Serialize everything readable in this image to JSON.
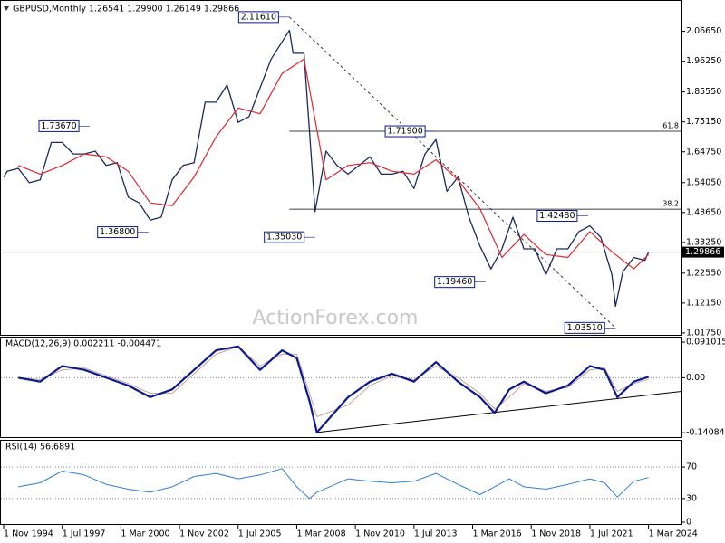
{
  "chart_data": [
    {
      "type": "price",
      "title": "GBPUSD,Monthly  1.26541 1.29900 1.26149 1.29866",
      "xlim": [
        "1994-11-01",
        "2025-09-01"
      ],
      "ylim": [
        1.011,
        2.166
      ],
      "yticks": [
        {
          "value": 2.0665,
          "label": "2.06650"
        },
        {
          "value": 1.9625,
          "label": "1.96250"
        },
        {
          "value": 1.8555,
          "label": "1.85550"
        },
        {
          "value": 1.7515,
          "label": "1.75150"
        },
        {
          "value": 1.6475,
          "label": "1.64750"
        },
        {
          "value": 1.5405,
          "label": "1.54050"
        },
        {
          "value": 1.4365,
          "label": "1.43650"
        },
        {
          "value": 1.3325,
          "label": "1.33250"
        },
        {
          "value": 1.2255,
          "label": "1.22550"
        },
        {
          "value": 1.1215,
          "label": "1.12150"
        },
        {
          "value": 1.0175,
          "label": "1.01750"
        }
      ],
      "current_price": 1.29866,
      "watermark": "ActionForex.com",
      "series": [
        {
          "color": "#1b2a5c",
          "x": [
            "1994-11-01",
            "1995-01-01",
            "1995-07-01",
            "1996-01-01",
            "1996-07-01",
            "1997-01-01",
            "1997-07-01",
            "1998-01-01",
            "1998-07-01",
            "1999-01-01",
            "1999-07-01",
            "2000-01-01",
            "2000-07-01",
            "2001-01-01",
            "2001-07-01",
            "2002-01-01",
            "2002-07-01",
            "2003-01-01",
            "2003-07-01",
            "2004-01-01",
            "2004-07-01",
            "2005-01-01",
            "2005-07-01",
            "2006-01-01",
            "2006-07-01",
            "2007-01-01",
            "2007-07-01",
            "2007-11-01",
            "2008-01-01",
            "2008-07-01",
            "2009-01-01",
            "2009-07-01",
            "2010-01-01",
            "2010-07-01",
            "2011-01-01",
            "2011-07-01",
            "2012-01-01",
            "2012-07-01",
            "2013-01-01",
            "2013-07-01",
            "2014-01-01",
            "2014-07-01",
            "2015-01-01",
            "2015-07-01",
            "2016-01-01",
            "2016-07-01",
            "2017-01-01",
            "2017-07-01",
            "2018-01-01",
            "2018-07-01",
            "2019-01-01",
            "2019-07-01",
            "2020-01-01",
            "2020-07-01",
            "2021-01-01",
            "2021-07-01",
            "2022-01-01",
            "2022-07-01",
            "2022-09-01",
            "2023-01-01",
            "2023-07-01",
            "2024-01-01",
            "2024-03-01"
          ],
          "values": [
            1.56,
            1.58,
            1.59,
            1.54,
            1.55,
            1.68,
            1.68,
            1.64,
            1.64,
            1.65,
            1.6,
            1.61,
            1.49,
            1.47,
            1.41,
            1.42,
            1.55,
            1.6,
            1.61,
            1.82,
            1.82,
            1.88,
            1.75,
            1.77,
            1.87,
            1.97,
            2.03,
            2.07,
            1.99,
            1.99,
            1.44,
            1.65,
            1.6,
            1.57,
            1.6,
            1.63,
            1.57,
            1.57,
            1.58,
            1.52,
            1.64,
            1.69,
            1.51,
            1.56,
            1.42,
            1.32,
            1.24,
            1.31,
            1.42,
            1.31,
            1.31,
            1.22,
            1.31,
            1.31,
            1.37,
            1.39,
            1.35,
            1.22,
            1.11,
            1.23,
            1.28,
            1.27,
            1.29866
          ]
        },
        {
          "color": "#e0262b",
          "x": [
            "1995-07-01",
            "1996-07-01",
            "1997-07-01",
            "1998-07-01",
            "1999-07-01",
            "2000-07-01",
            "2001-07-01",
            "2002-07-01",
            "2003-07-01",
            "2004-07-01",
            "2005-07-01",
            "2006-07-01",
            "2007-07-01",
            "2008-07-01",
            "2009-07-01",
            "2010-07-01",
            "2011-07-01",
            "2012-07-01",
            "2013-07-01",
            "2014-07-01",
            "2015-07-01",
            "2016-07-01",
            "2017-07-01",
            "2018-07-01",
            "2019-07-01",
            "2020-07-01",
            "2021-07-01",
            "2022-07-01",
            "2023-07-01",
            "2024-03-01"
          ],
          "values": [
            1.6,
            1.57,
            1.6,
            1.64,
            1.63,
            1.58,
            1.47,
            1.46,
            1.56,
            1.7,
            1.8,
            1.78,
            1.92,
            1.97,
            1.55,
            1.6,
            1.61,
            1.58,
            1.57,
            1.62,
            1.55,
            1.45,
            1.28,
            1.36,
            1.29,
            1.28,
            1.37,
            1.3,
            1.24,
            1.29
          ]
        }
      ],
      "annotations": {
        "x": [
          "2007-11-01",
          "1998-10-01",
          "2001-06-01",
          "2009-01-01",
          "2014-07-01",
          "2016-10-01",
          "2021-06-01",
          "2022-09-01"
        ],
        "values": [
          2.1161,
          1.7367,
          1.368,
          1.3503,
          1.719,
          1.1946,
          1.4248,
          1.0351
        ],
        "value_labels": [
          "2.11610",
          "1.73670",
          "1.36800",
          "1.35030",
          "1.71900",
          "1.19460",
          "1.42480",
          "1.03510"
        ]
      },
      "fib_start": "2007-11-01",
      "fib_levels": [
        {
          "value": 1.719,
          "label": "61.8"
        },
        {
          "value": 1.448,
          "label": "38.2"
        }
      ]
    },
    {
      "type": "macd",
      "title": "MACD(12,26,9) 0.002211 -0.004471",
      "xlim": [
        "1994-11-01",
        "2025-09-01"
      ],
      "ylim": [
        -0.152,
        0.105
      ],
      "yticks": [
        0.091015,
        {
          "value": 0,
          "label": "0.00"
        },
        -0.140843
      ],
      "zero_line": true,
      "x": [
        "1995-07-01",
        "1996-07-01",
        "1997-07-01",
        "1998-07-01",
        "1999-07-01",
        "2000-07-01",
        "2001-07-01",
        "2002-07-01",
        "2003-07-01",
        "2004-07-01",
        "2005-07-01",
        "2006-07-01",
        "2007-07-01",
        "2008-03-01",
        "2008-10-01",
        "2009-02-01",
        "2010-07-01",
        "2011-07-01",
        "2012-07-01",
        "2013-07-01",
        "2014-07-01",
        "2015-07-01",
        "2016-07-01",
        "2017-03-01",
        "2017-11-01",
        "2018-07-01",
        "2019-07-01",
        "2020-07-01",
        "2021-07-01",
        "2022-03-01",
        "2022-10-01",
        "2023-07-01",
        "2024-03-01"
      ],
      "series": [
        {
          "color": "#0a1a8c",
          "values": [
            0.0,
            -0.01,
            0.03,
            0.02,
            0.0,
            -0.02,
            -0.05,
            -0.03,
            0.02,
            0.07,
            0.08,
            0.02,
            0.07,
            0.05,
            -0.06,
            -0.14,
            -0.05,
            -0.01,
            0.01,
            -0.01,
            0.04,
            -0.01,
            -0.05,
            -0.09,
            -0.03,
            -0.01,
            -0.04,
            -0.02,
            0.03,
            0.02,
            -0.05,
            -0.01,
            0.002211
          ]
        },
        {
          "color": "#c8a0a0",
          "values": [
            0.0,
            -0.005,
            0.02,
            0.025,
            0.005,
            -0.015,
            -0.04,
            -0.04,
            0.01,
            0.06,
            0.08,
            0.03,
            0.06,
            0.06,
            -0.04,
            -0.1,
            -0.07,
            -0.02,
            0.005,
            -0.005,
            0.03,
            0.0,
            -0.04,
            -0.08,
            -0.05,
            -0.015,
            -0.035,
            -0.025,
            0.02,
            0.025,
            -0.035,
            -0.015,
            -0.004471
          ]
        }
      ],
      "trendline": {
        "x": [
          "2009-02-01",
          "2025-09-01"
        ],
        "values": [
          -0.14,
          -0.035
        ]
      }
    },
    {
      "type": "rsi",
      "title": "RSI(14) 56.6891",
      "xlim": [
        "1994-11-01",
        "2025-09-01"
      ],
      "ylim": [
        0,
        100
      ],
      "yticks": [
        70,
        30,
        0
      ],
      "grid": true,
      "x": [
        "1995-07-01",
        "1996-07-01",
        "1997-07-01",
        "1998-07-01",
        "1999-07-01",
        "2000-07-01",
        "2001-07-01",
        "2002-07-01",
        "2003-07-01",
        "2004-07-01",
        "2005-07-01",
        "2006-07-01",
        "2007-07-01",
        "2008-03-01",
        "2008-10-01",
        "2009-02-01",
        "2010-07-01",
        "2011-07-01",
        "2012-07-01",
        "2013-07-01",
        "2014-07-01",
        "2015-07-01",
        "2016-07-01",
        "2017-03-01",
        "2017-11-01",
        "2018-07-01",
        "2019-07-01",
        "2020-07-01",
        "2021-07-01",
        "2022-03-01",
        "2022-10-01",
        "2023-07-01",
        "2024-03-01"
      ],
      "series": [
        {
          "color": "#2f7fd6",
          "values": [
            45,
            50,
            65,
            60,
            48,
            42,
            38,
            45,
            58,
            62,
            55,
            60,
            68,
            45,
            30,
            38,
            55,
            52,
            50,
            52,
            62,
            48,
            35,
            45,
            55,
            45,
            42,
            48,
            55,
            50,
            32,
            52,
            56.6891
          ]
        }
      ],
      "xticks": [
        {
          "value": "1994-11-01",
          "label": "1 Nov 1994"
        },
        {
          "value": "1997-07-01",
          "label": "1 Jul 1997"
        },
        {
          "value": "2000-03-01",
          "label": "1 Mar 2000"
        },
        {
          "value": "2002-11-01",
          "label": "1 Nov 2002"
        },
        {
          "value": "2005-07-01",
          "label": "1 Jul 2005"
        },
        {
          "value": "2008-03-01",
          "label": "1 Mar 2008"
        },
        {
          "value": "2010-11-01",
          "label": "1 Nov 2010"
        },
        {
          "value": "2013-07-01",
          "label": "1 Jul 2013"
        },
        {
          "value": "2016-03-01",
          "label": "1 Mar 2016"
        },
        {
          "value": "2018-11-01",
          "label": "1 Nov 2018"
        },
        {
          "value": "2021-07-01",
          "label": "1 Jul 2021"
        },
        {
          "value": "2024-03-01",
          "label": "1 Mar 2024"
        }
      ]
    }
  ]
}
